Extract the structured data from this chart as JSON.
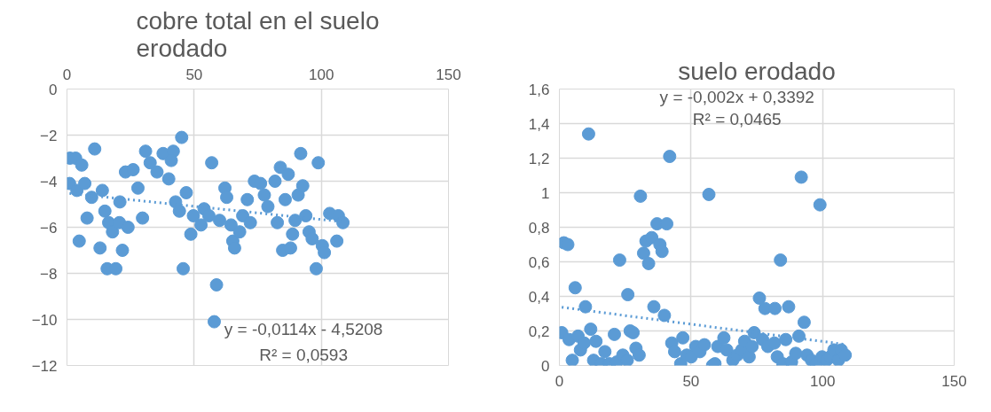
{
  "chart_data": [
    {
      "type": "scatter",
      "title": "cobre total en el suelo erodado",
      "xlim": [
        0,
        150
      ],
      "xticks": [
        0,
        50,
        100,
        150
      ],
      "ylim": [
        -12,
        0
      ],
      "yticks": [
        -12,
        -10,
        -8,
        -6,
        -4,
        -2,
        0
      ],
      "grid": true,
      "marker": "circle",
      "annotations": [
        "y = -0,0114x - 4,5208",
        "R² = 0,0593"
      ],
      "series": [
        {
          "color": "#5b9bd5",
          "x": [
            1.2,
            3.4,
            5.8,
            10.9,
            1,
            3.9,
            7,
            9.7,
            13.9,
            7.9,
            4.8,
            14.9,
            13,
            16.4,
            17.9,
            20.6,
            20.8,
            24,
            21.8,
            15.8,
            19.2,
            23,
            26,
            27.9,
            29.7,
            30.9,
            32.7,
            35.4,
            37.8,
            40,
            41.8,
            41,
            45.1,
            42.7,
            44.2,
            46.9,
            45.7,
            48.7,
            49.7,
            52.7,
            53.9,
            55.8,
            56.9,
            58.8,
            57.9,
            60,
            62.1,
            62.8,
            64.5,
            65.2,
            65.9,
            67.9,
            69.1,
            70.9,
            72.1,
            73.7,
            76.1,
            77.6,
            79,
            81.8,
            83.9,
            82.7,
            85.8,
            87,
            84.8,
            87.9,
            88.7,
            89.7,
            91.9,
            90.9,
            92.7,
            93.9,
            95.2,
            96.4,
            98,
            98.8,
            100.4,
            101.2,
            103.3,
            106.1,
            106.7,
            108.5
          ],
          "values": [
            -3.0,
            -3.0,
            -3.3,
            -2.6,
            -4.1,
            -4.4,
            -4.1,
            -4.7,
            -4.4,
            -5.6,
            -6.6,
            -5.3,
            -6.9,
            -5.8,
            -6.2,
            -5.8,
            -4.9,
            -6.0,
            -7.0,
            -7.8,
            -7.8,
            -3.6,
            -3.5,
            -4.3,
            -5.6,
            -2.7,
            -3.2,
            -3.6,
            -2.8,
            -3.9,
            -2.7,
            -3.1,
            -2.1,
            -4.9,
            -5.3,
            -4.5,
            -7.8,
            -6.3,
            -5.5,
            -5.9,
            -5.2,
            -5.5,
            -3.2,
            -8.5,
            -10.1,
            -5.7,
            -4.3,
            -4.7,
            -5.9,
            -6.6,
            -6.9,
            -6.2,
            -5.5,
            -4.8,
            -5.8,
            -4.0,
            -4.1,
            -4.6,
            -5.1,
            -4.0,
            -3.4,
            -5.8,
            -4.8,
            -3.7,
            -7.0,
            -6.9,
            -6.3,
            -5.7,
            -2.8,
            -4.6,
            -4.2,
            -5.5,
            -6.2,
            -6.5,
            -7.8,
            -3.2,
            -6.8,
            -7.1,
            -5.4,
            -6.6,
            -5.5,
            -5.8
          ]
        },
        {
          "type": "line",
          "color": "#5b9bd5",
          "line_style": "dotted",
          "marker": "none",
          "x": [
            1,
            108.5
          ],
          "values": [
            -4.53,
            -5.76
          ]
        }
      ]
    },
    {
      "type": "scatter",
      "title": "suelo erodado",
      "xlim": [
        0,
        150
      ],
      "xticks": [
        0,
        50,
        100,
        150
      ],
      "ylim": [
        0,
        1.6
      ],
      "yticks": [
        0,
        {
          "value": 0.2,
          "label": "0,2"
        },
        {
          "value": 0.4,
          "label": "0,4"
        },
        {
          "value": 0.6,
          "label": "0,6"
        },
        {
          "value": 0.8,
          "label": "0,8"
        },
        1,
        {
          "value": 1.2,
          "label": "1,2"
        },
        {
          "value": 1.4,
          "label": "1,4"
        },
        {
          "value": 1.6,
          "label": "1,6"
        }
      ],
      "grid": true,
      "marker": "circle",
      "annotations": [
        "y = -0,002x + 0,3392",
        "R² = 0,0465"
      ],
      "series": [
        {
          "color": "#5b9bd5",
          "x": [
            0.9,
            1.7,
            3.2,
            3.7,
            4.9,
            6,
            7.1,
            8,
            9.4,
            9.9,
            11.1,
            11.9,
            13.9,
            13,
            15.9,
            17.3,
            19,
            20.9,
            21.8,
            22.9,
            24.1,
            25.8,
            26,
            26.9,
            28,
            29.1,
            30.3,
            30.8,
            32,
            32.9,
            33.9,
            35.1,
            35.9,
            37.1,
            38.2,
            39,
            39.9,
            40.8,
            41.9,
            42.7,
            43.8,
            46.1,
            46.9,
            48.4,
            50.1,
            51.8,
            53.4,
            55.1,
            56.8,
            58.2,
            59.1,
            60.2,
            62.5,
            63.6,
            65.9,
            67.6,
            69.3,
            70.4,
            72.1,
            73.2,
            74,
            76,
            77.2,
            78.1,
            79.2,
            81.7,
            81.9,
            82.8,
            84,
            84.9,
            86,
            87.1,
            88.2,
            89.8,
            91,
            91.9,
            93,
            94.1,
            95.8,
            97.5,
            99,
            99.8,
            101.5,
            102.9,
            104.3,
            106,
            107.1,
            108.6
          ],
          "values": [
            0.19,
            0.71,
            0.7,
            0.15,
            0.03,
            0.45,
            0.17,
            0.09,
            0.13,
            0.34,
            1.34,
            0.21,
            0.14,
            0.03,
            0.01,
            0.08,
            0.01,
            0.18,
            0.02,
            0.61,
            0.06,
            0.03,
            0.41,
            0.2,
            0.19,
            0.1,
            0.06,
            0.98,
            0.65,
            0.72,
            0.59,
            0.74,
            0.34,
            0.82,
            0.7,
            0.66,
            0.29,
            0.82,
            1.21,
            0.13,
            0.08,
            0.01,
            0.16,
            0.06,
            0.05,
            0.11,
            0.08,
            0.12,
            0.99,
            0.0,
            0.01,
            0.11,
            0.16,
            0.09,
            0.03,
            0.06,
            0.09,
            0.14,
            0.05,
            0.11,
            0.19,
            0.39,
            0.15,
            0.33,
            0.11,
            0.13,
            0.33,
            0.05,
            0.61,
            0.01,
            0.15,
            0.34,
            0.02,
            0.07,
            0.17,
            1.09,
            0.25,
            0.06,
            0.03,
            0.01,
            0.93,
            0.05,
            0.03,
            0.05,
            0.09,
            0.03,
            0.09,
            0.06
          ]
        },
        {
          "type": "line",
          "color": "#5b9bd5",
          "line_style": "dotted",
          "marker": "none",
          "x": [
            0.9,
            108.6
          ],
          "values": [
            0.337,
            0.122
          ]
        }
      ]
    }
  ]
}
